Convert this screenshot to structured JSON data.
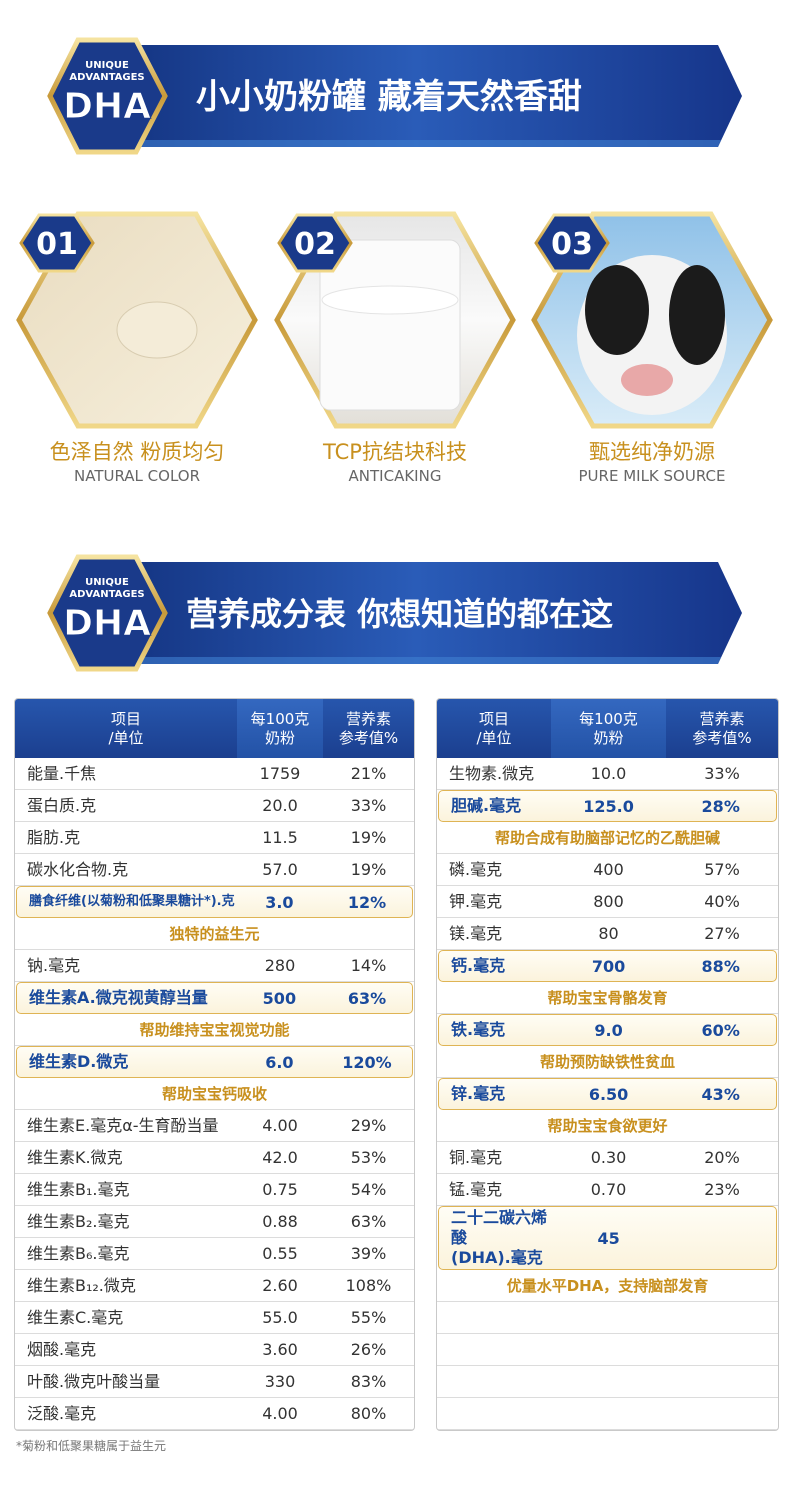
{
  "banner1": {
    "badge_top": "UNIQUE",
    "badge_mid": "ADVANTAGES",
    "badge": "DHA",
    "title": "小小奶粉罐 藏着天然香甜"
  },
  "features": [
    {
      "num": "01",
      "title": "色泽自然 粉质均匀",
      "subtitle": "NATURAL COLOR"
    },
    {
      "num": "02",
      "title": "TCP抗结块科技",
      "subtitle": "ANTICAKING"
    },
    {
      "num": "03",
      "title": "甄选纯净奶源",
      "subtitle": "PURE MILK SOURCE"
    }
  ],
  "banner2": {
    "badge_top": "UNIQUE",
    "badge_mid": "ADVANTAGES",
    "badge": "DHA",
    "title": "营养成分表  你想知道的都在这"
  },
  "tables": {
    "left": {
      "header": [
        "项目\n/单位",
        "每100克\n奶粉",
        "营养素\n参考值%"
      ],
      "rows": [
        {
          "item": "能量.千焦",
          "amount": "1759",
          "nrv": "21%"
        },
        {
          "item": "蛋白质.克",
          "amount": "20.0",
          "nrv": "33%"
        },
        {
          "item": "脂肪.克",
          "amount": "11.5",
          "nrv": "19%"
        },
        {
          "item": "碳水化合物.克",
          "amount": "57.0",
          "nrv": "19%"
        },
        {
          "item": "膳食纤维(以菊粉和低聚果糖计*).克",
          "amount": "3.0",
          "nrv": "12%",
          "highlight": true
        },
        {
          "note": "独特的益生元"
        },
        {
          "item": "钠.毫克",
          "amount": "280",
          "nrv": "14%"
        },
        {
          "item": "维生素A.微克视黄醇当量",
          "amount": "500",
          "nrv": "63%",
          "highlight": true
        },
        {
          "note": "帮助维持宝宝视觉功能"
        },
        {
          "item": "维生素D.微克",
          "amount": "6.0",
          "nrv": "120%",
          "highlight": true
        },
        {
          "note": "帮助宝宝钙吸收"
        },
        {
          "item": "维生素E.毫克α-生育酚当量",
          "amount": "4.00",
          "nrv": "29%"
        },
        {
          "item": "维生素K.微克",
          "amount": "42.0",
          "nrv": "53%"
        },
        {
          "item": "维生素B₁.毫克",
          "amount": "0.75",
          "nrv": "54%"
        },
        {
          "item": "维生素B₂.毫克",
          "amount": "0.88",
          "nrv": "63%"
        },
        {
          "item": "维生素B₆.毫克",
          "amount": "0.55",
          "nrv": "39%"
        },
        {
          "item": "维生素B₁₂.微克",
          "amount": "2.60",
          "nrv": "108%"
        },
        {
          "item": "维生素C.毫克",
          "amount": "55.0",
          "nrv": "55%"
        },
        {
          "item": "烟酸.毫克",
          "amount": "3.60",
          "nrv": "26%"
        },
        {
          "item": "叶酸.微克叶酸当量",
          "amount": "330",
          "nrv": "83%"
        },
        {
          "item": "泛酸.毫克",
          "amount": "4.00",
          "nrv": "80%"
        }
      ]
    },
    "right": {
      "header": [
        "项目\n/单位",
        "每100克\n奶粉",
        "营养素\n参考值%"
      ],
      "rows": [
        {
          "item": "生物素.微克",
          "amount": "10.0",
          "nrv": "33%"
        },
        {
          "item": "胆碱.毫克",
          "amount": "125.0",
          "nrv": "28%",
          "highlight": true
        },
        {
          "note": "帮助合成有助脑部记忆的乙酰胆碱"
        },
        {
          "item": "磷.毫克",
          "amount": "400",
          "nrv": "57%"
        },
        {
          "item": "钾.毫克",
          "amount": "800",
          "nrv": "40%"
        },
        {
          "item": "镁.毫克",
          "amount": "80",
          "nrv": "27%"
        },
        {
          "item": "钙.毫克",
          "amount": "700",
          "nrv": "88%",
          "highlight": true
        },
        {
          "note": "帮助宝宝骨骼发育"
        },
        {
          "item": "铁.毫克",
          "amount": "9.0",
          "nrv": "60%",
          "highlight": true
        },
        {
          "note": "帮助预防缺铁性贫血"
        },
        {
          "item": "锌.毫克",
          "amount": "6.50",
          "nrv": "43%",
          "highlight": true
        },
        {
          "note": "帮助宝宝食欲更好"
        },
        {
          "item": "铜.毫克",
          "amount": "0.30",
          "nrv": "20%"
        },
        {
          "item": "锰.毫克",
          "amount": "0.70",
          "nrv": "23%"
        },
        {
          "item": "二十二碳六烯酸\n(DHA).毫克",
          "amount": "45",
          "highlight": true
        },
        {
          "note": "优量水平DHA，支持脑部发育"
        }
      ]
    }
  },
  "footnote": "*菊粉和低聚果糖属于益生元"
}
